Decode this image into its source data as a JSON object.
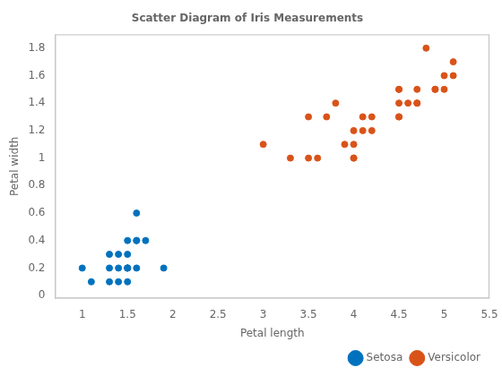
{
  "chart_data": {
    "type": "scatter",
    "title": "Scatter Diagram of Iris Measurements",
    "xlabel": "Petal length",
    "ylabel": "Petal width",
    "xlim": [
      0.7,
      5.5
    ],
    "ylim": [
      -0.02,
      1.9
    ],
    "xticks": [
      1,
      1.5,
      2,
      2.5,
      3,
      3.5,
      4,
      4.5,
      5,
      5.5
    ],
    "yticks": [
      0,
      0.2,
      0.4,
      0.6,
      0.8,
      1,
      1.2,
      1.4,
      1.6,
      1.8
    ],
    "grid": false,
    "legend": "lower right",
    "marker": "circle",
    "series": [
      {
        "name": "Setosa",
        "color": "#0072BD",
        "x": [
          1.0,
          1.1,
          1.3,
          1.3,
          1.3,
          1.4,
          1.4,
          1.4,
          1.5,
          1.5,
          1.5,
          1.5,
          1.5,
          1.5,
          1.5,
          1.6,
          1.6,
          1.6,
          1.6,
          1.7,
          1.9
        ],
        "values": [
          0.2,
          0.1,
          0.2,
          0.3,
          0.1,
          0.2,
          0.3,
          0.1,
          0.2,
          0.2,
          0.3,
          0.1,
          0.2,
          0.4,
          0.2,
          0.4,
          0.4,
          0.6,
          0.2,
          0.4,
          0.2
        ]
      },
      {
        "name": "Versicolor",
        "color": "#D95319",
        "x": [
          3.0,
          3.3,
          3.5,
          3.5,
          3.6,
          3.7,
          3.8,
          3.9,
          4.0,
          4.0,
          4.0,
          4.0,
          4.1,
          4.1,
          4.2,
          4.2,
          4.5,
          4.5,
          4.5,
          4.5,
          4.5,
          4.6,
          4.7,
          4.7,
          4.7,
          4.8,
          4.9,
          4.9,
          5.0,
          5.0,
          5.1,
          5.1
        ],
        "values": [
          1.1,
          1.0,
          1.0,
          1.3,
          1.0,
          1.3,
          1.4,
          1.1,
          1.0,
          1.0,
          1.2,
          1.1,
          1.3,
          1.2,
          1.3,
          1.2,
          1.5,
          1.3,
          1.3,
          1.4,
          1.5,
          1.4,
          1.5,
          1.4,
          1.4,
          1.8,
          1.5,
          1.5,
          1.6,
          1.5,
          1.7,
          1.6
        ]
      }
    ]
  }
}
